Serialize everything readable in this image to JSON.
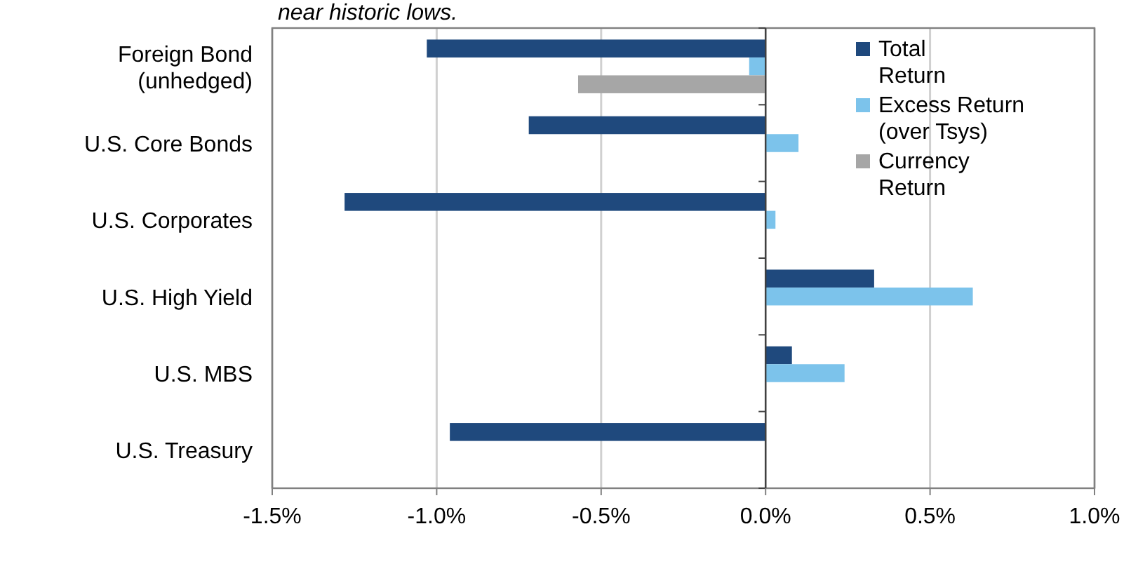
{
  "chart_data": {
    "type": "bar",
    "orientation": "horizontal",
    "subtitle": "near historic lows.",
    "categories": [
      "Foreign Bond\n(unhedged)",
      "U.S. Core Bonds",
      "U.S. Corporates",
      "U.S. High  Yield",
      "U.S. MBS",
      "U.S. Treasury"
    ],
    "series": [
      {
        "name": "Total\nReturn",
        "color": "#1f497d",
        "values": [
          -1.03,
          -0.72,
          -1.28,
          0.33,
          0.08,
          -0.96
        ]
      },
      {
        "name": "Excess Return\n(over Tsys)",
        "color": "#7cc3eb",
        "values": [
          -0.05,
          0.1,
          0.03,
          0.63,
          0.24,
          null
        ]
      },
      {
        "name": "Currency\nReturn",
        "color": "#a6a6a6",
        "values": [
          -0.57,
          null,
          null,
          null,
          null,
          null
        ]
      }
    ],
    "xlim": [
      -1.5,
      1.0
    ],
    "xticks": [
      {
        "value": -1.5,
        "label": "-1.5%"
      },
      {
        "value": -1.0,
        "label": "-1.0%"
      },
      {
        "value": -0.5,
        "label": "-0.5%"
      },
      {
        "value": 0,
        "label": "0.0%"
      },
      {
        "value": 0.5,
        "label": "0.5%"
      },
      {
        "value": 1.0,
        "label": "1.0%"
      }
    ],
    "grid": "x",
    "legend": "top right"
  }
}
